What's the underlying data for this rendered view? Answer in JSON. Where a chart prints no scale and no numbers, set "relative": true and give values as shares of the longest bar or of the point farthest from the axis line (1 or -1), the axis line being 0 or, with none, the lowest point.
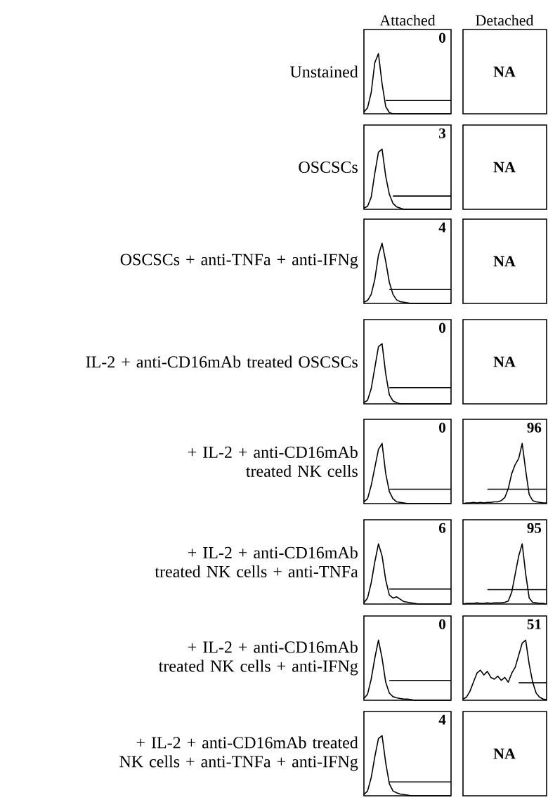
{
  "chart_data": [
    {
      "type": "line",
      "relative": true,
      "tick_labels": false,
      "title": "Attached",
      "ylabel": "Unstained",
      "categories": [
        null,
        null,
        null,
        null,
        null,
        null,
        null,
        null,
        null,
        null,
        null,
        null,
        null,
        null,
        null,
        null,
        null,
        null,
        null,
        null,
        null,
        null,
        null,
        null,
        null
      ],
      "annotations": [
        "0"
      ],
      "series": [
        {
          "color": "#000000",
          "values": [
            0.03,
            0.1,
            0.35,
            0.85,
            1,
            0.5,
            0.12,
            0.02,
            0,
            0,
            0,
            0,
            0,
            0,
            0,
            0,
            0,
            0,
            0,
            0,
            0,
            0,
            0,
            0,
            0
          ]
        },
        {
          "color": "#000000",
          "values": [
            null,
            null,
            null,
            null,
            null,
            null,
            0.22,
            0.22,
            0.22,
            0.22,
            0.22,
            0.22,
            0.22,
            0.22,
            0.22,
            0.22,
            0.22,
            0.22,
            0.22,
            0.22,
            0.22,
            0.22,
            0.22,
            0.22,
            0.22
          ]
        }
      ]
    },
    {
      "type": "other",
      "title": "Detached",
      "annotations": [
        "NA"
      ]
    },
    {
      "type": "line",
      "relative": true,
      "tick_labels": false,
      "ylabel": "OSCSCs",
      "categories": [
        null,
        null,
        null,
        null,
        null,
        null,
        null,
        null,
        null,
        null,
        null,
        null,
        null,
        null,
        null,
        null,
        null,
        null,
        null,
        null,
        null,
        null,
        null,
        null,
        null
      ],
      "annotations": [
        "3"
      ],
      "series": [
        {
          "color": "#000000",
          "values": [
            0.02,
            0.05,
            0.2,
            0.6,
            0.95,
            1,
            0.55,
            0.25,
            0.1,
            0.04,
            0.02,
            0,
            0,
            0,
            0,
            0,
            0,
            0,
            0,
            0,
            0,
            0,
            0,
            0,
            0
          ]
        },
        {
          "color": "#000000",
          "values": [
            null,
            null,
            null,
            null,
            null,
            null,
            null,
            null,
            0.22,
            0.22,
            0.22,
            0.22,
            0.22,
            0.22,
            0.22,
            0.22,
            0.22,
            0.22,
            0.22,
            0.22,
            0.22,
            0.22,
            0.22,
            0.22,
            0.22
          ]
        }
      ]
    },
    {
      "type": "other",
      "annotations": [
        "NA"
      ]
    },
    {
      "type": "line",
      "relative": true,
      "tick_labels": false,
      "ylabel": "OSCSCs + anti-TNFa + anti-IFNg",
      "categories": [
        null,
        null,
        null,
        null,
        null,
        null,
        null,
        null,
        null,
        null,
        null,
        null,
        null,
        null,
        null,
        null,
        null,
        null,
        null,
        null,
        null,
        null,
        null,
        null,
        null
      ],
      "annotations": [
        "4"
      ],
      "series": [
        {
          "color": "#000000",
          "values": [
            0.02,
            0.05,
            0.15,
            0.4,
            0.8,
            1,
            0.7,
            0.35,
            0.15,
            0.06,
            0.03,
            0.02,
            0.01,
            0,
            0,
            0,
            0,
            0,
            0,
            0,
            0,
            0,
            0,
            0,
            0
          ]
        },
        {
          "color": "#000000",
          "values": [
            null,
            null,
            null,
            null,
            null,
            null,
            null,
            0.23,
            0.23,
            0.23,
            0.23,
            0.23,
            0.23,
            0.23,
            0.23,
            0.23,
            0.23,
            0.23,
            0.23,
            0.23,
            0.23,
            0.23,
            0.23,
            0.23,
            0.23
          ]
        }
      ]
    },
    {
      "type": "other",
      "annotations": [
        "NA"
      ]
    },
    {
      "type": "line",
      "relative": true,
      "tick_labels": false,
      "ylabel": "IL-2 + anti-CD16mAb treated OSCSCs",
      "categories": [
        null,
        null,
        null,
        null,
        null,
        null,
        null,
        null,
        null,
        null,
        null,
        null,
        null,
        null,
        null,
        null,
        null,
        null,
        null,
        null,
        null,
        null,
        null,
        null,
        null
      ],
      "annotations": [
        "0"
      ],
      "series": [
        {
          "color": "#000000",
          "values": [
            0.02,
            0.06,
            0.25,
            0.6,
            0.95,
            1,
            0.5,
            0.15,
            0.05,
            0.02,
            0,
            0,
            0,
            0,
            0,
            0,
            0,
            0,
            0,
            0,
            0,
            0,
            0,
            0,
            0
          ]
        },
        {
          "color": "#000000",
          "values": [
            null,
            null,
            null,
            null,
            null,
            null,
            null,
            0.27,
            0.27,
            0.27,
            0.27,
            0.27,
            0.27,
            0.27,
            0.27,
            0.27,
            0.27,
            0.27,
            0.27,
            0.27,
            0.27,
            0.27,
            0.27,
            0.27,
            0.27
          ]
        }
      ]
    },
    {
      "type": "other",
      "annotations": [
        "NA"
      ]
    },
    {
      "type": "line",
      "relative": true,
      "tick_labels": false,
      "ylabel": "+ IL-2 + anti-CD16mAb treated NK cells",
      "categories": [
        null,
        null,
        null,
        null,
        null,
        null,
        null,
        null,
        null,
        null,
        null,
        null,
        null,
        null,
        null,
        null,
        null,
        null,
        null,
        null,
        null,
        null,
        null,
        null,
        null
      ],
      "annotations": [
        "0"
      ],
      "series": [
        {
          "color": "#000000",
          "values": [
            0.03,
            0.08,
            0.3,
            0.6,
            0.9,
            1,
            0.5,
            0.2,
            0.08,
            0.03,
            0.02,
            0.01,
            0,
            0,
            0,
            0,
            0,
            0,
            0,
            0,
            0,
            0,
            0,
            0,
            0
          ]
        },
        {
          "color": "#000000",
          "values": [
            null,
            null,
            null,
            null,
            null,
            null,
            null,
            0.24,
            0.24,
            0.24,
            0.24,
            0.24,
            0.24,
            0.24,
            0.24,
            0.24,
            0.24,
            0.24,
            0.24,
            0.24,
            0.24,
            0.24,
            0.24,
            0.24,
            0.24
          ]
        }
      ]
    },
    {
      "type": "line",
      "relative": true,
      "tick_labels": false,
      "categories": [
        null,
        null,
        null,
        null,
        null,
        null,
        null,
        null,
        null,
        null,
        null,
        null,
        null,
        null,
        null,
        null,
        null,
        null,
        null,
        null,
        null,
        null,
        null,
        null,
        null
      ],
      "annotations": [
        "96"
      ],
      "series": [
        {
          "color": "#000000",
          "values": [
            0,
            0.01,
            0.01,
            0.02,
            0.01,
            0.02,
            0.01,
            0.02,
            0.02,
            0.03,
            0.03,
            0.05,
            0.1,
            0.25,
            0.5,
            0.65,
            0.75,
            1,
            0.55,
            0.15,
            0.05,
            0.03,
            0.02,
            0.01,
            0.01
          ]
        },
        {
          "color": "#000000",
          "values": [
            null,
            null,
            null,
            null,
            null,
            null,
            null,
            0.24,
            0.24,
            0.24,
            0.24,
            0.24,
            0.24,
            0.24,
            0.24,
            0.24,
            0.24,
            0.24,
            0.24,
            0.24,
            0.24,
            0.24,
            0.24,
            0.24,
            0.24
          ]
        }
      ]
    },
    {
      "type": "line",
      "relative": true,
      "tick_labels": false,
      "ylabel": "+ IL-2 + anti-CD16mAb treated NK cells + anti-TNFa",
      "categories": [
        null,
        null,
        null,
        null,
        null,
        null,
        null,
        null,
        null,
        null,
        null,
        null,
        null,
        null,
        null,
        null,
        null,
        null,
        null,
        null,
        null,
        null,
        null,
        null,
        null
      ],
      "annotations": [
        "6"
      ],
      "series": [
        {
          "color": "#000000",
          "values": [
            0.02,
            0.1,
            0.35,
            0.7,
            1,
            0.8,
            0.4,
            0.15,
            0.1,
            0.12,
            0.08,
            0.04,
            0.03,
            0.02,
            0.01,
            0,
            0,
            0,
            0,
            0,
            0,
            0,
            0,
            0,
            0
          ]
        },
        {
          "color": "#000000",
          "values": [
            null,
            null,
            null,
            null,
            null,
            null,
            null,
            0.25,
            0.25,
            0.25,
            0.25,
            0.25,
            0.25,
            0.25,
            0.25,
            0.25,
            0.25,
            0.25,
            0.25,
            0.25,
            0.25,
            0.25,
            0.25,
            0.25,
            0.25
          ]
        }
      ]
    },
    {
      "type": "line",
      "relative": true,
      "tick_labels": false,
      "categories": [
        null,
        null,
        null,
        null,
        null,
        null,
        null,
        null,
        null,
        null,
        null,
        null,
        null,
        null,
        null,
        null,
        null,
        null,
        null,
        null,
        null,
        null,
        null,
        null,
        null
      ],
      "annotations": [
        "95"
      ],
      "series": [
        {
          "color": "#000000",
          "values": [
            0,
            0.01,
            0.01,
            0.01,
            0.02,
            0.01,
            0.01,
            0.02,
            0.01,
            0.02,
            0.02,
            0.02,
            0.03,
            0.05,
            0.2,
            0.5,
            0.8,
            1,
            0.5,
            0.1,
            0.03,
            0.02,
            0.01,
            0.01,
            0
          ]
        },
        {
          "color": "#000000",
          "values": [
            null,
            null,
            null,
            null,
            null,
            null,
            null,
            0.24,
            0.24,
            0.24,
            0.24,
            0.24,
            0.24,
            0.24,
            0.24,
            0.24,
            0.24,
            0.24,
            0.24,
            0.24,
            0.24,
            0.24,
            0.24,
            0.24,
            0.24
          ]
        }
      ]
    },
    {
      "type": "line",
      "relative": true,
      "tick_labels": false,
      "ylabel": "+ IL-2 + anti-CD16mAb treated NK cells + anti-IFNg",
      "categories": [
        null,
        null,
        null,
        null,
        null,
        null,
        null,
        null,
        null,
        null,
        null,
        null,
        null,
        null,
        null,
        null,
        null,
        null,
        null,
        null,
        null,
        null,
        null,
        null,
        null
      ],
      "annotations": [
        "0"
      ],
      "series": [
        {
          "color": "#000000",
          "values": [
            0.03,
            0.1,
            0.35,
            0.7,
            1,
            0.7,
            0.3,
            0.12,
            0.06,
            0.04,
            0.03,
            0.02,
            0.02,
            0.01,
            0,
            0,
            0,
            0,
            0,
            0,
            0,
            0,
            0,
            0,
            0
          ]
        },
        {
          "color": "#000000",
          "values": [
            null,
            null,
            null,
            null,
            null,
            null,
            null,
            0.33,
            0.33,
            0.33,
            0.33,
            0.33,
            0.33,
            0.33,
            0.33,
            0.33,
            0.33,
            0.33,
            0.33,
            0.33,
            0.33,
            0.33,
            0.33,
            0.33,
            0.33
          ]
        }
      ]
    },
    {
      "type": "line",
      "relative": true,
      "tick_labels": false,
      "categories": [
        null,
        null,
        null,
        null,
        null,
        null,
        null,
        null,
        null,
        null,
        null,
        null,
        null,
        null,
        null,
        null,
        null,
        null,
        null,
        null,
        null,
        null,
        null,
        null,
        null
      ],
      "annotations": [
        "51"
      ],
      "series": [
        {
          "color": "#000000",
          "values": [
            0.02,
            0.05,
            0.15,
            0.3,
            0.45,
            0.5,
            0.42,
            0.48,
            0.38,
            0.35,
            0.4,
            0.33,
            0.38,
            0.3,
            0.45,
            0.55,
            0.75,
            0.95,
            1,
            0.6,
            0.3,
            0.12,
            0.05,
            0.02,
            0.01
          ]
        },
        {
          "color": "#000000",
          "values": [
            null,
            null,
            null,
            null,
            null,
            null,
            null,
            null,
            null,
            null,
            null,
            null,
            null,
            null,
            null,
            null,
            0.29,
            0.29,
            0.29,
            0.29,
            0.29,
            0.29,
            0.29,
            0.29,
            0.29
          ]
        }
      ]
    },
    {
      "type": "line",
      "relative": true,
      "tick_labels": false,
      "ylabel": "+ IL-2 + anti-CD16mAb treated NK cells + anti-TNFa + anti-IFNg",
      "categories": [
        null,
        null,
        null,
        null,
        null,
        null,
        null,
        null,
        null,
        null,
        null,
        null,
        null,
        null,
        null,
        null,
        null,
        null,
        null,
        null,
        null,
        null,
        null,
        null,
        null
      ],
      "annotations": [
        "4"
      ],
      "series": [
        {
          "color": "#000000",
          "values": [
            0.02,
            0.08,
            0.3,
            0.65,
            0.95,
            1,
            0.55,
            0.2,
            0.08,
            0.05,
            0.03,
            0.02,
            0.01,
            0,
            0,
            0,
            0,
            0,
            0,
            0,
            0,
            0,
            0,
            0,
            0
          ]
        },
        {
          "color": "#000000",
          "values": [
            null,
            null,
            null,
            null,
            null,
            null,
            null,
            0.23,
            0.23,
            0.23,
            0.23,
            0.23,
            0.23,
            0.23,
            0.23,
            0.23,
            0.23,
            0.23,
            0.23,
            0.23,
            0.23,
            0.23,
            0.23,
            0.23,
            0.23
          ]
        }
      ]
    },
    {
      "type": "other",
      "annotations": [
        "NA"
      ]
    }
  ]
}
